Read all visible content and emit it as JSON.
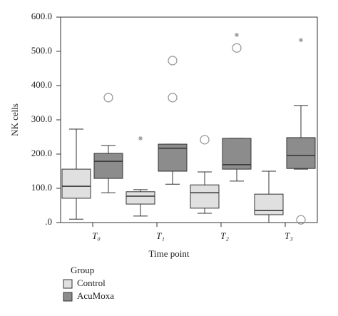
{
  "chart_data": {
    "type": "box",
    "x_label": "Time point",
    "y_label": "NK cells",
    "categories": [
      "T₀",
      "T₁",
      "T₂",
      "T₃"
    ],
    "ylim": [
      0,
      600
    ],
    "yticks": [
      {
        "value": 0,
        "label": ".0"
      },
      {
        "value": 100,
        "label": "100.0"
      },
      {
        "value": 200,
        "label": "200.0"
      },
      {
        "value": 300,
        "label": "300.0"
      },
      {
        "value": 400,
        "label": "400.0"
      },
      {
        "value": 500,
        "label": "500.0"
      },
      {
        "value": 600,
        "label": "600.0"
      }
    ],
    "legend_title": "Group",
    "series": [
      {
        "name": "Control",
        "color": "#e0e0e0",
        "low": [
          10,
          19,
          27,
          0
        ],
        "q1": [
          71,
          54,
          42,
          23
        ],
        "median": [
          106,
          77,
          87,
          35
        ],
        "q3": [
          156,
          90,
          110,
          83
        ],
        "high": [
          273,
          96,
          148,
          150
        ],
        "outliers": [
          [],
          [],
          [
            242
          ],
          []
        ],
        "extremes": [
          [],
          [
            246
          ],
          [],
          []
        ]
      },
      {
        "name": "AcuMoxa",
        "color": "#8c8c8c",
        "low": [
          87,
          112,
          121,
          156
        ],
        "q1": [
          129,
          150,
          156,
          158
        ],
        "median": [
          179,
          217,
          169,
          196
        ],
        "q3": [
          202,
          229,
          246,
          248
        ],
        "high": [
          225,
          229,
          246,
          342
        ],
        "outliers": [
          [
            365
          ],
          [
            473,
            365
          ],
          [
            510
          ],
          [
            8
          ]
        ],
        "extremes": [
          [],
          [],
          [
            548
          ],
          [
            533
          ]
        ]
      }
    ]
  }
}
